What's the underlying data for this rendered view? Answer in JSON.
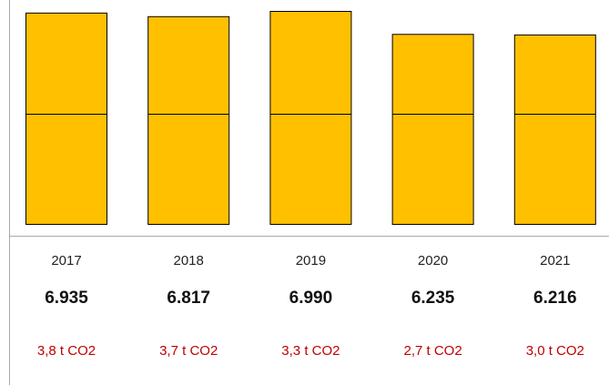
{
  "chart_data": {
    "type": "bar",
    "categories": [
      "2017",
      "2018",
      "2019",
      "2020",
      "2021"
    ],
    "values": [
      6935,
      6817,
      6990,
      6235,
      6216
    ],
    "value_labels": [
      "6.935",
      "6.817",
      "6.990",
      "6.235",
      "6.216"
    ],
    "annotations": [
      "3,8 t CO2",
      "3,7 t CO2",
      "3,3 t CO2",
      "2,7 t CO2",
      "3,0 t CO2"
    ],
    "color": "#ffc000",
    "annotation_color": "#c00000"
  }
}
